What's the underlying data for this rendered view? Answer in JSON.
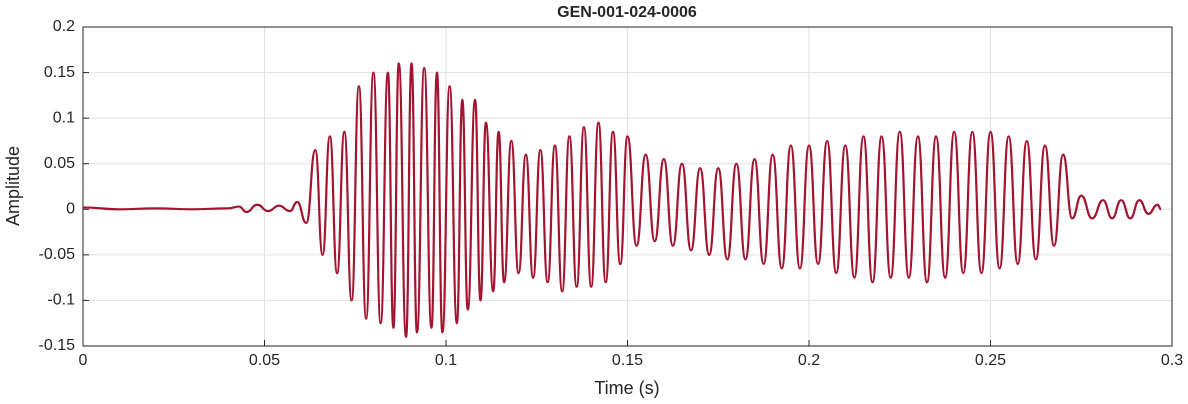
{
  "chart_data": {
    "type": "line",
    "title": "GEN-001-024-0006",
    "xlabel": "Time (s)",
    "ylabel": "Amplitude",
    "xlim": [
      0,
      0.3
    ],
    "xticks": [
      0,
      0.05,
      0.1,
      0.15,
      0.2,
      0.25,
      0.3
    ],
    "ylim": [
      -0.15,
      0.2
    ],
    "yticks": [
      -0.15,
      -0.1,
      -0.05,
      0,
      0.05,
      0.1,
      0.15,
      0.2
    ],
    "grid": true,
    "series": [
      {
        "color": "#a2142f",
        "x": [
          0,
          0.01,
          0.02,
          0.03,
          0.04,
          0.043,
          0.045,
          0.048,
          0.051,
          0.054,
          0.057,
          0.059,
          0.0615,
          0.064,
          0.066,
          0.068,
          0.07,
          0.072,
          0.074,
          0.076,
          0.078,
          0.08,
          0.082,
          0.084,
          0.0855,
          0.087,
          0.089,
          0.0905,
          0.092,
          0.094,
          0.096,
          0.0975,
          0.099,
          0.101,
          0.103,
          0.1045,
          0.106,
          0.108,
          0.1095,
          0.111,
          0.113,
          0.1145,
          0.116,
          0.118,
          0.12,
          0.122,
          0.124,
          0.126,
          0.128,
          0.13,
          0.132,
          0.134,
          0.136,
          0.138,
          0.14,
          0.142,
          0.144,
          0.146,
          0.148,
          0.15,
          0.1525,
          0.155,
          0.1575,
          0.16,
          0.1625,
          0.165,
          0.1675,
          0.17,
          0.1725,
          0.175,
          0.1775,
          0.18,
          0.1825,
          0.185,
          0.1875,
          0.19,
          0.1925,
          0.195,
          0.1975,
          0.2,
          0.2025,
          0.205,
          0.2075,
          0.21,
          0.2125,
          0.215,
          0.2175,
          0.22,
          0.2225,
          0.225,
          0.2275,
          0.23,
          0.2325,
          0.235,
          0.2375,
          0.24,
          0.2425,
          0.245,
          0.2475,
          0.25,
          0.2525,
          0.255,
          0.2575,
          0.26,
          0.2625,
          0.265,
          0.2675,
          0.27,
          0.2725,
          0.275,
          0.278,
          0.281,
          0.2835,
          0.286,
          0.2885,
          0.291,
          0.2935,
          0.296,
          0.297
        ],
        "values": [
          0.002,
          0,
          0.001,
          0,
          0.001,
          0.003,
          -0.003,
          0.005,
          -0.002,
          0.004,
          -0.002,
          0.008,
          -0.015,
          0.065,
          -0.05,
          0.08,
          -0.07,
          0.085,
          -0.1,
          0.135,
          -0.12,
          0.15,
          -0.125,
          0.15,
          -0.13,
          0.16,
          -0.14,
          0.16,
          -0.135,
          0.155,
          -0.13,
          0.15,
          -0.135,
          0.135,
          -0.125,
          0.12,
          -0.11,
          0.12,
          -0.1,
          0.095,
          -0.09,
          0.085,
          -0.08,
          0.075,
          -0.07,
          0.06,
          -0.075,
          0.065,
          -0.08,
          0.07,
          -0.09,
          0.08,
          -0.085,
          0.09,
          -0.085,
          0.095,
          -0.08,
          0.085,
          -0.06,
          0.08,
          -0.04,
          0.06,
          -0.035,
          0.055,
          -0.04,
          0.05,
          -0.045,
          0.045,
          -0.05,
          0.045,
          -0.055,
          0.05,
          -0.055,
          0.055,
          -0.06,
          0.06,
          -0.065,
          0.07,
          -0.065,
          0.07,
          -0.06,
          0.075,
          -0.07,
          0.07,
          -0.075,
          0.08,
          -0.08,
          0.08,
          -0.075,
          0.085,
          -0.075,
          0.08,
          -0.08,
          0.08,
          -0.075,
          0.085,
          -0.07,
          0.085,
          -0.07,
          0.085,
          -0.065,
          0.08,
          -0.06,
          0.075,
          -0.055,
          0.07,
          -0.04,
          0.06,
          -0.01,
          0.015,
          -0.01,
          0.01,
          -0.01,
          0.01,
          -0.01,
          0.01,
          -0.005,
          0.005,
          0
        ]
      }
    ]
  }
}
